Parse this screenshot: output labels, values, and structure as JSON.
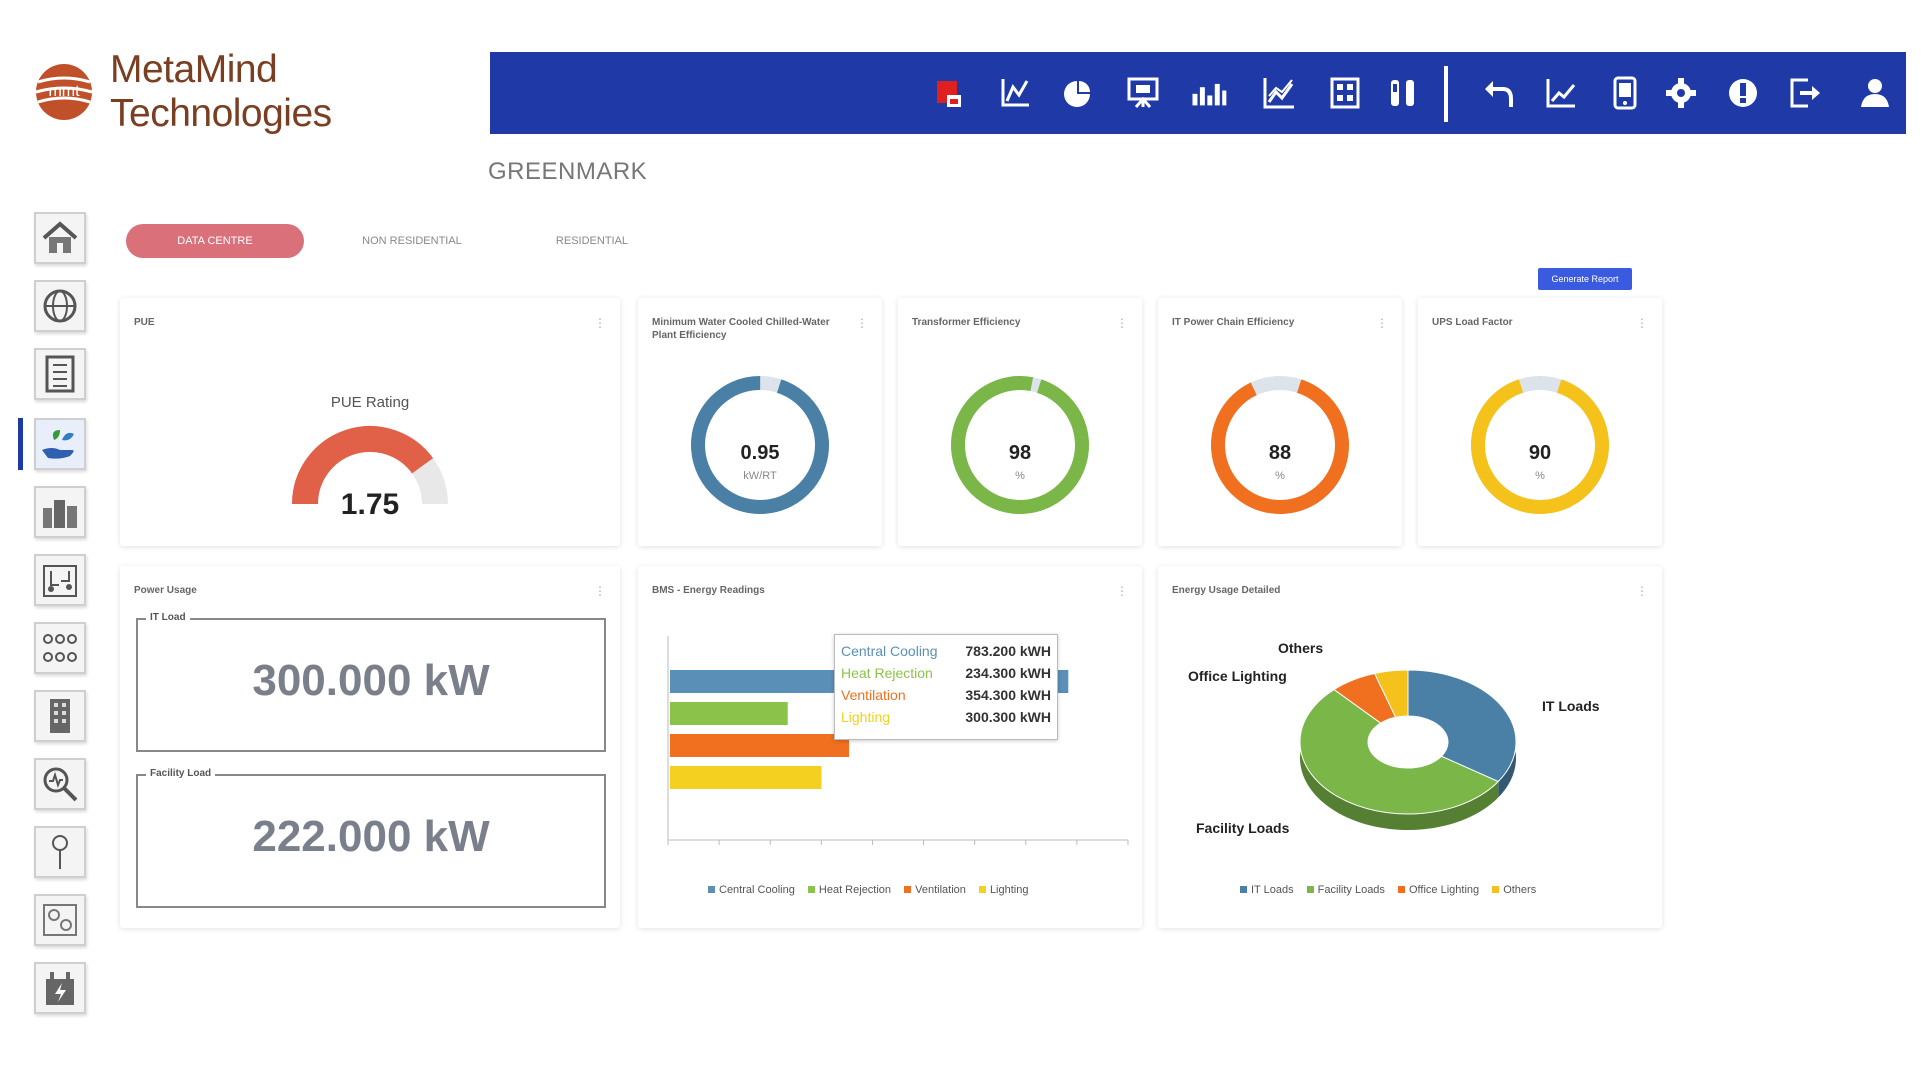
{
  "app": {
    "brand": "MetaMind Technologies",
    "logo_letters": "mmt"
  },
  "toolbar": {
    "icons": [
      "alarm-icon",
      "line-chart-icon",
      "pie-chart-icon",
      "presentation-icon",
      "bar-chart-icon",
      "area-chart-icon",
      "calculator-icon",
      "tools-icon",
      "undo-icon",
      "trend-icon",
      "mobile-icon",
      "gear-icon",
      "info-icon",
      "logout-icon",
      "user-icon"
    ]
  },
  "page": {
    "title": "GREENMARK"
  },
  "sidebar": {
    "items": [
      "home-icon",
      "globe-icon",
      "list-icon",
      "green-hand-icon",
      "buildings-icon",
      "circuit-icon",
      "network-icon",
      "building-icon",
      "search-analytics-icon",
      "pin-icon",
      "map-icon",
      "power-icon"
    ],
    "active_index": 3
  },
  "tabs": [
    {
      "label": "DATA CENTRE",
      "active": true
    },
    {
      "label": "NON RESIDENTIAL",
      "active": false
    },
    {
      "label": "RESIDENTIAL",
      "active": false
    }
  ],
  "generate_report_label": "Generate Report",
  "pue": {
    "title": "PUE",
    "gauge_label": "PUE Rating",
    "value": "1.75",
    "fill": 0.8,
    "color": "#e06048"
  },
  "kpis": [
    {
      "title": "Minimum Water Cooled Chilled-Water Plant Efficiency",
      "value": "0.95",
      "unit": "kW/RT",
      "fill": 0.95,
      "color": "#4a7fa6"
    },
    {
      "title": "Transformer Efficiency",
      "value": "98",
      "unit": "%",
      "fill": 0.98,
      "color": "#7ab648"
    },
    {
      "title": "IT Power Chain Efficiency",
      "value": "88",
      "unit": "%",
      "fill": 0.88,
      "color": "#f07020"
    },
    {
      "title": "UPS Load Factor",
      "value": "90",
      "unit": "%",
      "fill": 0.9,
      "color": "#f4c21a"
    }
  ],
  "power_usage": {
    "title": "Power Usage",
    "it_load_label": "IT Load",
    "it_load_value": "300.000 kW",
    "facility_load_label": "Facility Load",
    "facility_load_value": "222.000 kW"
  },
  "bms": {
    "title": "BMS - Energy Readings",
    "tooltip": [
      {
        "name": "Central Cooling",
        "value": "783.200 kWH",
        "color": "#5a8fb8"
      },
      {
        "name": "Heat Rejection",
        "value": "234.300 kWH",
        "color": "#8bc34a"
      },
      {
        "name": "Ventilation",
        "value": "354.300 kWH",
        "color": "#f07020"
      },
      {
        "name": "Lighting",
        "value": "300.300 kWH",
        "color": "#f4d020"
      }
    ]
  },
  "chart_data": {
    "type": "bar",
    "orientation": "horizontal",
    "categories": [
      "Central Cooling",
      "Heat Rejection",
      "Ventilation",
      "Lighting"
    ],
    "values": [
      783.2,
      234.3,
      354.3,
      300.3
    ],
    "colors": [
      "#5a8fb8",
      "#8bc34a",
      "#f07020",
      "#f4d020"
    ],
    "xlim": [
      0,
      900
    ],
    "grid": false,
    "legend": "bottom"
  },
  "energy_detail": {
    "title": "Energy Usage Detailed",
    "slices": [
      {
        "name": "IT Loads",
        "share": 0.3425,
        "color": "#4a7fa6"
      },
      {
        "name": "Facility Loads",
        "share": 0.5375,
        "color": "#7ab648"
      },
      {
        "name": "Office Lighting",
        "share": 0.07,
        "color": "#f07020"
      },
      {
        "name": "Others",
        "share": 0.05,
        "color": "#f4c21a"
      }
    ]
  }
}
